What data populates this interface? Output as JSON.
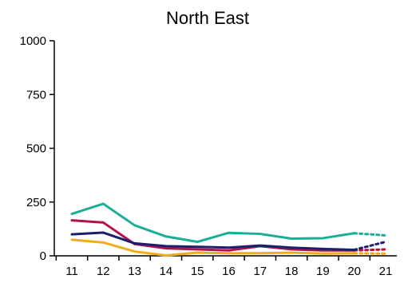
{
  "chart_data": {
    "type": "line",
    "title": "North East",
    "xlabel": "",
    "ylabel": "",
    "categories": [
      "11",
      "12",
      "13",
      "14",
      "15",
      "16",
      "17",
      "18",
      "19",
      "20",
      "21"
    ],
    "ylim": [
      0,
      1000
    ],
    "yticks": [
      "0",
      "250",
      "500",
      "750",
      "1000"
    ],
    "grid": false,
    "legend": "none",
    "projection_start_index": 9,
    "series": [
      {
        "color": "#1aae96",
        "values": [
          195,
          242,
          142,
          90,
          65,
          107,
          102,
          80,
          82,
          105,
          95
        ]
      },
      {
        "color": "#b0124a",
        "values": [
          165,
          155,
          55,
          35,
          30,
          25,
          45,
          30,
          25,
          25,
          30
        ]
      },
      {
        "color": "#1c1f6e",
        "values": [
          100,
          108,
          58,
          45,
          42,
          38,
          48,
          38,
          32,
          28,
          65
        ]
      },
      {
        "color": "#efad1a",
        "values": [
          75,
          62,
          20,
          2,
          15,
          12,
          12,
          15,
          10,
          12,
          10
        ]
      }
    ]
  }
}
